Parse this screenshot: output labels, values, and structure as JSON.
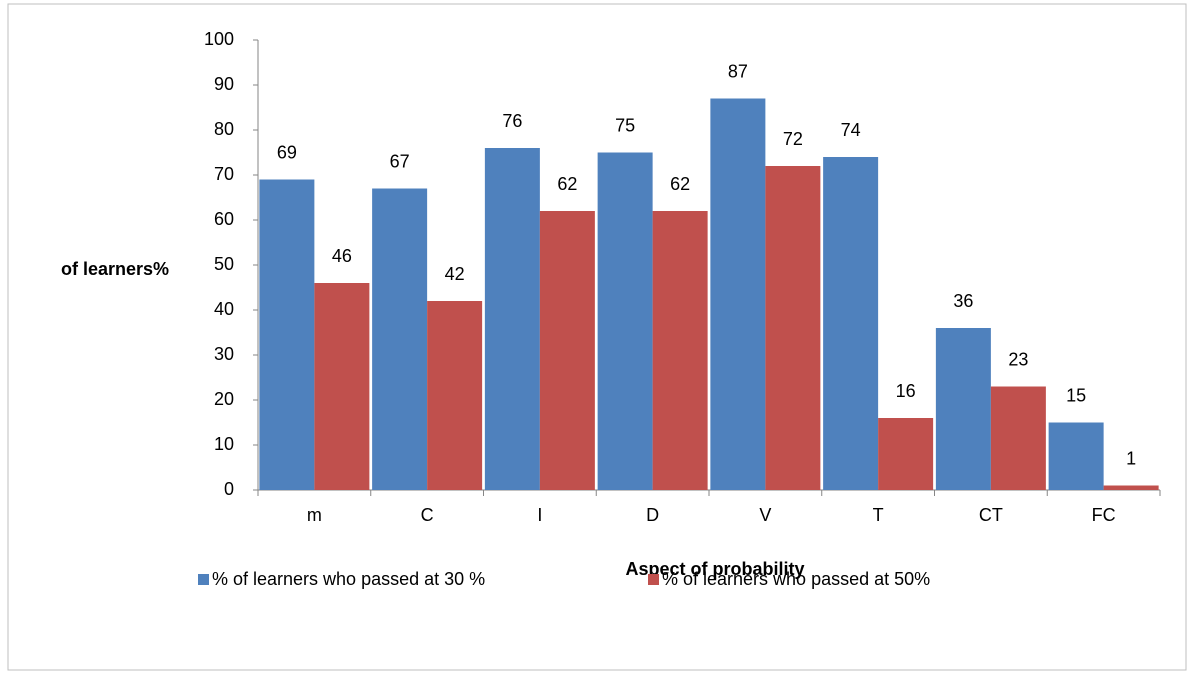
{
  "chart_data": {
    "type": "bar",
    "categories": [
      "m",
      "C",
      "I",
      "D",
      "V",
      "T",
      "CT",
      "FC"
    ],
    "series": [
      {
        "name": "% of learners who passed at 30 %",
        "color": "#4f81bd",
        "values": [
          69,
          67,
          76,
          75,
          87,
          74,
          36,
          15
        ]
      },
      {
        "name": "% of learners who passed at 50%",
        "color": "#c0504d",
        "values": [
          46,
          42,
          62,
          62,
          72,
          16,
          23,
          1
        ]
      }
    ],
    "x_label": "Aspect of probability",
    "y_label": "of learners%",
    "ylim": [
      0,
      100
    ],
    "yticks": [
      0,
      10,
      20,
      30,
      40,
      50,
      60,
      70,
      80,
      90,
      100
    ],
    "grid": false,
    "data_labels": true,
    "legend": "bottom"
  }
}
